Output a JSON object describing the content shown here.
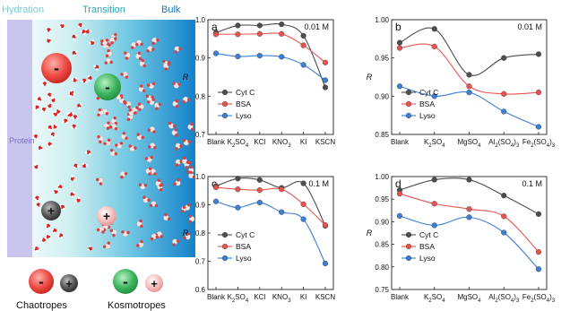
{
  "scheme": {
    "region_labels": [
      "Hydration",
      "Transition",
      "Bulk"
    ],
    "protein_label": "Protein",
    "chaotropes_label": "Chaotropes",
    "kosmotropes_label": "Kosmotropes",
    "minus": "-",
    "plus": "+",
    "colors": {
      "chaotrope_anion": "#e83a3a",
      "kosmotrope_anion": "#3cb55e",
      "chaotrope_cation": "#4a4a4a",
      "kosmotrope_cation": "#f2a8a8",
      "bulk": "#1f8fce",
      "protein": "#c9c5ee",
      "water_o": "#e02020"
    }
  },
  "chart_data": [
    {
      "type": "line",
      "panel": "a",
      "concentration": "0.01 M",
      "categories": [
        "Blank",
        "K2SO4",
        "KCl",
        "KNO3",
        "KI",
        "KSCN"
      ],
      "ylim": [
        0.7,
        1.0
      ],
      "yticks": [
        "0.7",
        "0.8",
        "0.9",
        "1.0"
      ],
      "ylabel": "R",
      "series": [
        {
          "name": "Cyt C",
          "color": "#4d4d4d",
          "values": [
            0.966,
            0.985,
            0.985,
            0.988,
            0.958,
            0.823
          ]
        },
        {
          "name": "BSA",
          "color": "#e8534f",
          "values": [
            0.962,
            0.962,
            0.963,
            0.963,
            0.933,
            0.888
          ]
        },
        {
          "name": "Lyso",
          "color": "#3b7fd6",
          "values": [
            0.912,
            0.904,
            0.906,
            0.903,
            0.882,
            0.842
          ]
        }
      ]
    },
    {
      "type": "line",
      "panel": "b",
      "concentration": "0.01 M",
      "categories": [
        "Blank",
        "K2SO4",
        "MgSO4",
        "Al2(SO4)3",
        "Fe2(SO4)3"
      ],
      "ylim": [
        0.85,
        1.0
      ],
      "yticks": [
        "0.85",
        "0.90",
        "0.95",
        "1.00"
      ],
      "ylabel": "R",
      "series": [
        {
          "name": "Cyt C",
          "color": "#4d4d4d",
          "values": [
            0.97,
            0.988,
            0.928,
            0.95,
            0.955
          ]
        },
        {
          "name": "BSA",
          "color": "#e8534f",
          "values": [
            0.963,
            0.965,
            0.913,
            0.903,
            0.905
          ]
        },
        {
          "name": "Lyso",
          "color": "#3b7fd6",
          "values": [
            0.913,
            0.9,
            0.905,
            0.88,
            0.86
          ]
        }
      ]
    },
    {
      "type": "line",
      "panel": "c",
      "concentration": "0.1 M",
      "categories": [
        "Blank",
        "K2SO4",
        "KCl",
        "KNO3",
        "KI",
        "KSCN"
      ],
      "ylim": [
        0.6,
        1.0
      ],
      "yticks": [
        "0.6",
        "0.7",
        "0.8",
        "0.9",
        "1.0"
      ],
      "ylabel": "R",
      "series": [
        {
          "name": "Cyt C",
          "color": "#4d4d4d",
          "values": [
            0.966,
            0.993,
            0.988,
            0.96,
            0.976,
            0.826
          ]
        },
        {
          "name": "BSA",
          "color": "#e8534f",
          "values": [
            0.962,
            0.955,
            0.952,
            0.955,
            0.902,
            0.828
          ]
        },
        {
          "name": "Lyso",
          "color": "#3b7fd6",
          "values": [
            0.912,
            0.89,
            0.908,
            0.874,
            0.849,
            0.692
          ]
        }
      ]
    },
    {
      "type": "line",
      "panel": "d",
      "concentration": "0.1 M",
      "categories": [
        "Blank",
        "K2SO4",
        "MgSO4",
        "Al2(SO4)3",
        "Fe2(SO4)3"
      ],
      "ylim": [
        0.75,
        1.0
      ],
      "yticks": [
        "0.75",
        "0.80",
        "0.85",
        "0.90",
        "0.95",
        "1.00"
      ],
      "ylabel": "R",
      "series": [
        {
          "name": "Cyt C",
          "color": "#4d4d4d",
          "values": [
            0.97,
            0.993,
            0.993,
            0.958,
            0.917
          ]
        },
        {
          "name": "BSA",
          "color": "#e8534f",
          "values": [
            0.962,
            0.94,
            0.928,
            0.912,
            0.833
          ]
        },
        {
          "name": "Lyso",
          "color": "#3b7fd6",
          "values": [
            0.913,
            0.892,
            0.91,
            0.876,
            0.795
          ]
        }
      ]
    }
  ]
}
